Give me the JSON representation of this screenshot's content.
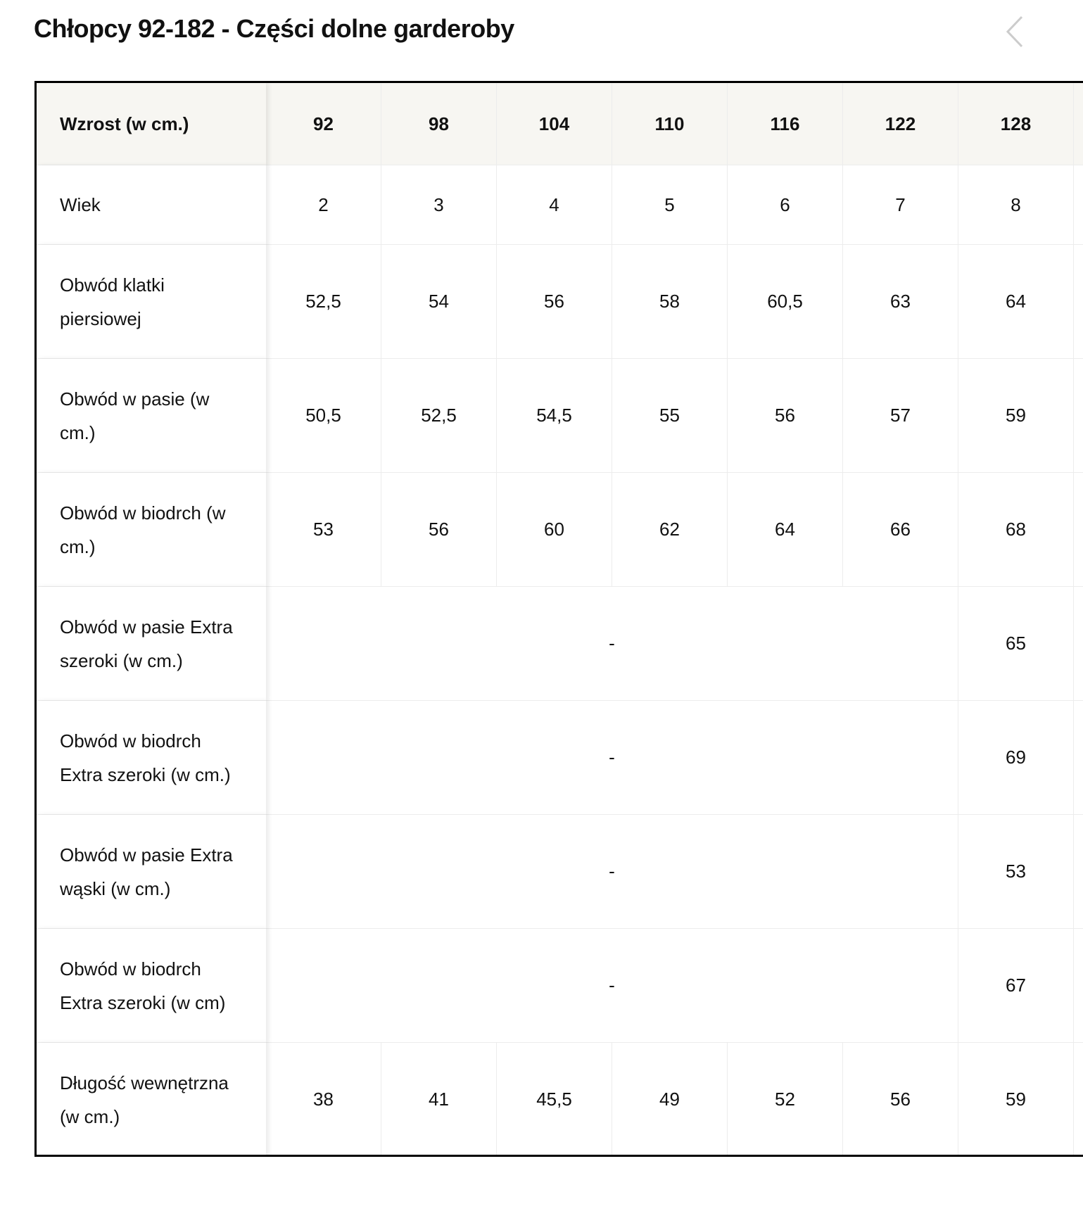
{
  "header": {
    "title": "Chłopcy 92-182 - Części dolne garderoby"
  },
  "table": {
    "columns": [
      "Wzrost (w cm.)",
      "92",
      "98",
      "104",
      "110",
      "116",
      "122",
      "128"
    ],
    "rows": [
      {
        "label": "Wiek",
        "cells": [
          "2",
          "3",
          "4",
          "5",
          "6",
          "7",
          "8"
        ]
      },
      {
        "label": "Obwód klatki piersiowej",
        "cells": [
          "52,5",
          "54",
          "56",
          "58",
          "60,5",
          "63",
          "64"
        ]
      },
      {
        "label": "Obwód w pasie (w cm.)",
        "cells": [
          "50,5",
          "52,5",
          "54,5",
          "55",
          "56",
          "57",
          "59"
        ]
      },
      {
        "label": "Obwód w biodrch (w cm.)",
        "cells": [
          "53",
          "56",
          "60",
          "62",
          "64",
          "66",
          "68"
        ]
      },
      {
        "label": "Obwód w pasie Extra szeroki (w cm.)",
        "cells": [
          "-",
          "65"
        ]
      },
      {
        "label": "Obwód w biodrch Extra szeroki (w cm.)",
        "cells": [
          "-",
          "69"
        ]
      },
      {
        "label": "Obwód w pasie Extra wąski (w cm.)",
        "cells": [
          "-",
          "53"
        ]
      },
      {
        "label": "Obwód w biodrch Extra szeroki (w cm)",
        "cells": [
          "-",
          "67"
        ]
      },
      {
        "label": "Długość wewnętrzna (w cm.)",
        "cells": [
          "38",
          "41",
          "45,5",
          "49",
          "52",
          "56",
          "59"
        ]
      }
    ]
  }
}
